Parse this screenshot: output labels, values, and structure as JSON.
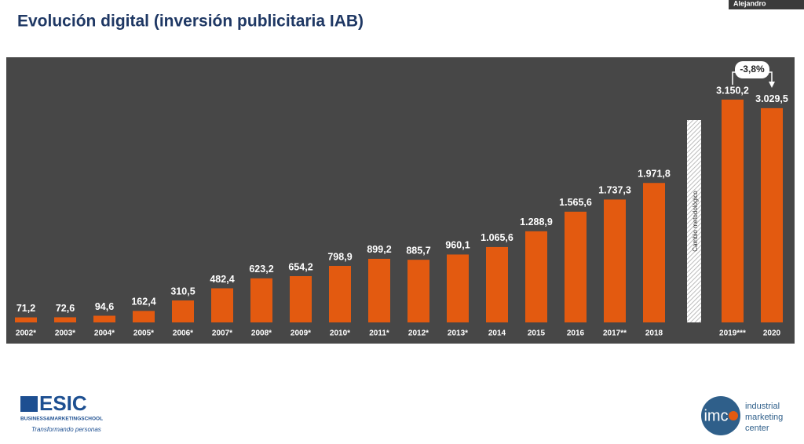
{
  "participant": "Alejandro",
  "logos": {
    "esic": [
      "ESIC",
      "BUSINESS&MARKETINGSCHOOL",
      "Transformando personas"
    ],
    "imc": [
      "imc",
      "industrial",
      "marketing",
      "center"
    ]
  },
  "chart_data": {
    "type": "bar",
    "title": "Evolución digital (inversión publicitaria IAB)",
    "categories": [
      "2002*",
      "2003*",
      "2004*",
      "2005*",
      "2006*",
      "2007*",
      "2008*",
      "2009*",
      "2010*",
      "2011*",
      "2012*",
      "2013*",
      "2014",
      "2015",
      "2016",
      "2017**",
      "2018",
      "2019***",
      "2020"
    ],
    "values": [
      71.2,
      72.6,
      94.6,
      162.4,
      310.5,
      482.4,
      623.2,
      654.2,
      798.9,
      899.2,
      885.7,
      960.1,
      1065.6,
      1288.9,
      1565.6,
      1737.3,
      1971.8,
      3150.2,
      3029.5
    ],
    "value_labels": [
      "71,2",
      "72,6",
      "94,6",
      "162,4",
      "310,5",
      "482,4",
      "623,2",
      "654,2",
      "798,9",
      "899,2",
      "885,7",
      "960,1",
      "1.065,6",
      "1.288,9",
      "1.565,6",
      "1.737,3",
      "1.971,8",
      "3.150,2",
      "3.029,5"
    ],
    "color": "#e35a10",
    "annotations": [
      "-3,8%",
      "Cambio metodológico"
    ]
  }
}
